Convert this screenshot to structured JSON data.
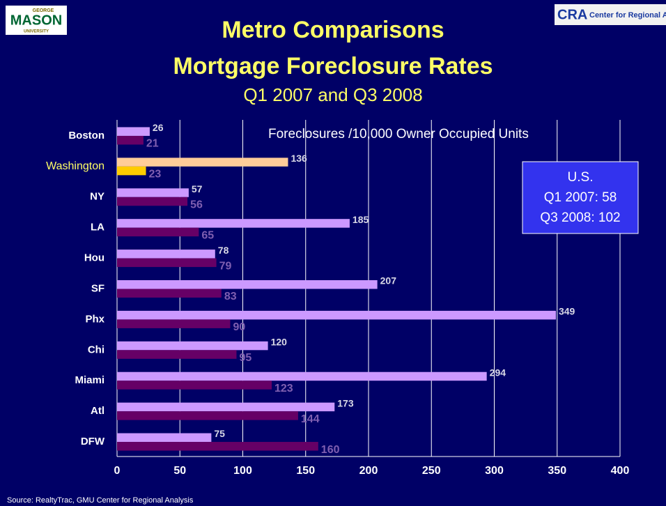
{
  "chart_data": {
    "type": "hbar",
    "title": "Metro Comparisons",
    "title2": "Mortgage Foreclosure Rates",
    "subtitle": "Q1 2007 and Q3 2008",
    "annotation": "Foreclosures /10,000 Owner Occupied Units",
    "us_box": [
      "U.S.",
      "Q1 2007: 58",
      "Q3 2008: 102"
    ],
    "source": "Source: RealtyTrac, GMU Center for Regional Analysis",
    "logo_left": [
      "GEORGE",
      "MASON",
      "UNIVERSITY"
    ],
    "logo_right": [
      "CRA",
      "Center for Regional Analy"
    ],
    "categories": [
      "Boston",
      "Washington",
      "NY",
      "LA",
      "Hou",
      "SF",
      "Phx",
      "Chi",
      "Miami",
      "Atl",
      "DFW"
    ],
    "highlight_index": 1,
    "highlight_label_color": "#ffff66",
    "series": [
      {
        "color": "#cc99ff",
        "highlight_color": "#ffcc99",
        "label_color": "#d9d9e6",
        "values": [
          26,
          136,
          57,
          185,
          78,
          207,
          349,
          120,
          294,
          173,
          75
        ]
      },
      {
        "color": "#660066",
        "highlight_color": "#ffcc00",
        "label_color": "#7f5fb0",
        "values": [
          21,
          23,
          56,
          65,
          79,
          83,
          90,
          95,
          123,
          144,
          160
        ]
      }
    ],
    "xlim": [
      0,
      400
    ],
    "xticks": [
      0,
      50,
      100,
      150,
      200,
      250,
      300,
      350,
      400
    ],
    "grid": true
  }
}
